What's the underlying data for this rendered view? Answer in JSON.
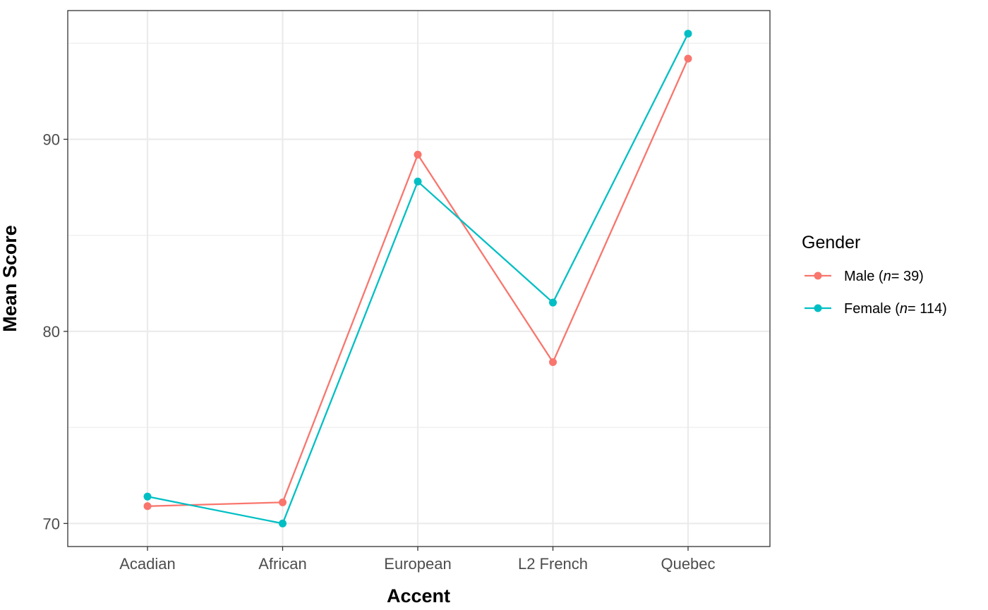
{
  "chart_data": {
    "type": "line",
    "title": "",
    "xlabel": "Accent",
    "ylabel": "Mean Score",
    "categories": [
      "Acadian",
      "African",
      "European",
      "L2 French",
      "Quebec"
    ],
    "ylim": [
      68.8,
      96.7
    ],
    "yticks": [
      70,
      80,
      90
    ],
    "grid": true,
    "legend": {
      "title": "Gender",
      "position": "right"
    },
    "series": [
      {
        "name": "Male (n= 39)",
        "name_prefix": "Male (",
        "name_italic": "n",
        "name_suffix": "= 39)",
        "color": "#F8766D",
        "values": [
          70.9,
          71.1,
          89.2,
          78.4,
          94.2
        ]
      },
      {
        "name": "Female (n= 114)",
        "name_prefix": "Female (",
        "name_italic": "n",
        "name_suffix": "= 114)",
        "color": "#00BFC4",
        "values": [
          71.4,
          70.0,
          87.8,
          81.5,
          95.5
        ]
      }
    ]
  }
}
